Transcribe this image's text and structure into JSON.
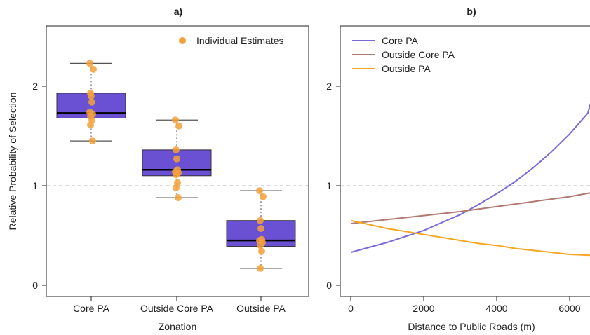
{
  "chart_data": [
    {
      "type": "box",
      "title": "a)",
      "xlabel": "Zonation",
      "ylabel": "Relative Probability of Selection",
      "ylim": [
        -0.1,
        2.55
      ],
      "yticks": [
        0,
        1,
        2
      ],
      "categories": [
        "Core PA",
        "Outside Core PA",
        "Outside PA"
      ],
      "box_stats": [
        {
          "whisker_low": 1.45,
          "q1": 1.68,
          "median": 1.73,
          "q3": 1.93,
          "whisker_high": 2.23
        },
        {
          "whisker_low": 0.88,
          "q1": 1.1,
          "median": 1.16,
          "q3": 1.36,
          "whisker_high": 1.66
        },
        {
          "whisker_low": 0.17,
          "q1": 0.39,
          "median": 0.45,
          "q3": 0.65,
          "whisker_high": 0.95
        }
      ],
      "points": [
        [
          2.23,
          2.17,
          1.93,
          1.9,
          1.84,
          1.74,
          1.72,
          1.7,
          1.66,
          1.61,
          1.45
        ],
        [
          1.66,
          1.6,
          1.36,
          1.27,
          1.16,
          1.14,
          1.13,
          1.11,
          1.03,
          0.98,
          0.88
        ],
        [
          0.95,
          0.89,
          0.65,
          0.57,
          0.46,
          0.45,
          0.43,
          0.4,
          0.34,
          0.17
        ]
      ],
      "reference_line": 1,
      "legend": {
        "label": "Individual Estimates",
        "position": "top-right"
      },
      "colors": {
        "box": "#6a50d3",
        "points": "#f5a03a"
      }
    },
    {
      "type": "line",
      "title": "b)",
      "xlabel": "Distance to Public Roads (m)",
      "ylabel": "",
      "xlim": [
        -200,
        6600
      ],
      "ylim": [
        -0.1,
        2.55
      ],
      "xticks": [
        0,
        2000,
        4000,
        6000
      ],
      "yticks": [
        0,
        1,
        2
      ],
      "reference_line": 1,
      "legend_position": "top-left",
      "series": [
        {
          "name": "Core PA",
          "color": "#7b68d8",
          "x": [
            0,
            500,
            1000,
            1500,
            2000,
            2500,
            3000,
            3500,
            4000,
            4500,
            5000,
            5500,
            6000,
            6500,
            6600
          ],
          "y": [
            0.33,
            0.38,
            0.43,
            0.49,
            0.55,
            0.63,
            0.71,
            0.81,
            0.92,
            1.04,
            1.18,
            1.34,
            1.52,
            1.73,
            1.86
          ]
        },
        {
          "name": "Outside Core PA",
          "color": "#b07a72",
          "x": [
            0,
            1000,
            2000,
            3000,
            4000,
            5000,
            6000,
            6600
          ],
          "y": [
            0.62,
            0.66,
            0.7,
            0.74,
            0.79,
            0.84,
            0.89,
            0.93
          ]
        },
        {
          "name": "Outside PA",
          "color": "#f5a623",
          "x": [
            0,
            500,
            1000,
            1500,
            2000,
            2500,
            3000,
            3500,
            4000,
            4500,
            5000,
            5500,
            6000,
            6600
          ],
          "y": [
            0.65,
            0.61,
            0.57,
            0.54,
            0.51,
            0.48,
            0.45,
            0.42,
            0.4,
            0.37,
            0.35,
            0.33,
            0.31,
            0.3
          ]
        }
      ]
    }
  ]
}
